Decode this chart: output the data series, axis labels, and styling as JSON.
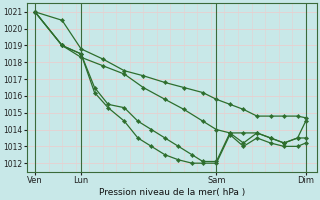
{
  "xlabel": "Pression niveau de la mer( hPa )",
  "bg_color": "#c8e8e8",
  "grid_color": "#e8d0d0",
  "line_color": "#2d6e2d",
  "marker_color": "#2d6e2d",
  "ylim": [
    1011.5,
    1021.5
  ],
  "yticks": [
    1012,
    1013,
    1014,
    1015,
    1016,
    1017,
    1018,
    1019,
    1020,
    1021
  ],
  "xtick_labels": [
    "Ven",
    "Lun",
    "Sam",
    "Dim"
  ],
  "series": [
    {
      "x": [
        0,
        0.1,
        0.17,
        0.25,
        0.33,
        0.4,
        0.48,
        0.55,
        0.62,
        0.67,
        0.72,
        0.77,
        0.82,
        0.87,
        0.92,
        0.97,
        1.0
      ],
      "y": [
        1021.0,
        1020.5,
        1018.8,
        1018.2,
        1017.5,
        1017.2,
        1016.8,
        1016.5,
        1016.2,
        1015.8,
        1015.5,
        1015.2,
        1014.8,
        1014.8,
        1014.8,
        1014.8,
        1014.7
      ]
    },
    {
      "x": [
        0,
        0.1,
        0.17,
        0.25,
        0.33,
        0.4,
        0.48,
        0.55,
        0.62,
        0.67,
        0.72,
        0.77,
        0.82,
        0.87,
        0.92,
        0.97,
        1.0
      ],
      "y": [
        1021.0,
        1019.0,
        1018.3,
        1017.8,
        1017.3,
        1016.5,
        1015.8,
        1015.2,
        1014.5,
        1014.0,
        1013.8,
        1013.8,
        1013.8,
        1013.5,
        1013.2,
        1013.5,
        1013.5
      ]
    },
    {
      "x": [
        0,
        0.1,
        0.17,
        0.22,
        0.27,
        0.33,
        0.38,
        0.43,
        0.48,
        0.53,
        0.58,
        0.62,
        0.67,
        0.72,
        0.77,
        0.82,
        0.87,
        0.92,
        0.97,
        1.0
      ],
      "y": [
        1021.0,
        1019.0,
        1018.5,
        1016.5,
        1015.5,
        1015.3,
        1014.5,
        1014.0,
        1013.5,
        1013.0,
        1012.5,
        1012.1,
        1012.1,
        1013.8,
        1013.2,
        1013.8,
        1013.5,
        1013.2,
        1013.5,
        1014.5
      ]
    },
    {
      "x": [
        0,
        0.1,
        0.17,
        0.22,
        0.27,
        0.33,
        0.38,
        0.43,
        0.48,
        0.53,
        0.58,
        0.62,
        0.67,
        0.72,
        0.77,
        0.82,
        0.87,
        0.92,
        0.97,
        1.0
      ],
      "y": [
        1021.0,
        1019.0,
        1018.5,
        1016.2,
        1015.3,
        1014.5,
        1013.5,
        1013.0,
        1012.5,
        1012.2,
        1012.0,
        1012.0,
        1012.0,
        1013.7,
        1013.0,
        1013.5,
        1013.2,
        1013.0,
        1013.0,
        1013.2
      ]
    }
  ],
  "xtick_positions": [
    0,
    0.17,
    0.67,
    1.0
  ]
}
